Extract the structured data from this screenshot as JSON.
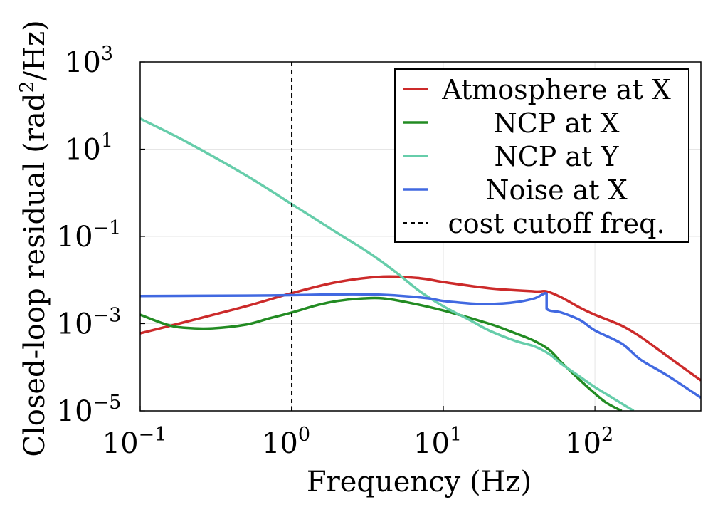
{
  "chart_data": {
    "type": "line",
    "title": "",
    "xlabel": "Frequency (Hz)",
    "ylabel": {
      "prefix": "Closed-loop residual (rad",
      "exponent": "2",
      "suffix": "/Hz)"
    },
    "x_scale": "log",
    "y_scale": "log",
    "xlim": [
      0.1,
      500
    ],
    "ylim": [
      1e-05,
      1000
    ],
    "grid": true,
    "legend_position": "top-right",
    "x_ticks": [
      {
        "value": 0.1,
        "base": "10",
        "exp": "−1"
      },
      {
        "value": 1,
        "base": "10",
        "exp": "0"
      },
      {
        "value": 10,
        "base": "10",
        "exp": "1"
      },
      {
        "value": 100,
        "base": "10",
        "exp": "2"
      }
    ],
    "y_ticks": [
      {
        "value": 1e-05,
        "base": "10",
        "exp": "−5"
      },
      {
        "value": 0.001,
        "base": "10",
        "exp": "−3"
      },
      {
        "value": 0.1,
        "base": "10",
        "exp": "−1"
      },
      {
        "value": 10,
        "base": "10",
        "exp": "1"
      },
      {
        "value": 1000,
        "base": "10",
        "exp": "3"
      }
    ],
    "series": [
      {
        "name": "Atmosphere at X",
        "color": "#cc2a2a",
        "style": "solid",
        "x": [
          0.1,
          0.2,
          0.5,
          1,
          2,
          4,
          7,
          10,
          20,
          40,
          48,
          60,
          80,
          100,
          150,
          200,
          300,
          500
        ],
        "y": [
          0.0006,
          0.0011,
          0.0025,
          0.005,
          0.009,
          0.012,
          0.011,
          0.009,
          0.0065,
          0.0055,
          0.0055,
          0.004,
          0.0023,
          0.0016,
          0.0009,
          0.0005,
          0.00018,
          5e-05
        ]
      },
      {
        "name": "NCP at X",
        "color": "#228b22",
        "style": "solid",
        "x": [
          0.1,
          0.15,
          0.2,
          0.3,
          0.5,
          0.7,
          1,
          1.5,
          2,
          3,
          4,
          6,
          10,
          20,
          30,
          40,
          50,
          60,
          80,
          100,
          120,
          150
        ],
        "y": [
          0.0016,
          0.00095,
          0.0008,
          0.00078,
          0.00095,
          0.0013,
          0.0018,
          0.0027,
          0.0033,
          0.0038,
          0.0038,
          0.003,
          0.002,
          0.001,
          0.0006,
          0.0004,
          0.00025,
          0.00013,
          5e-05,
          2.5e-05,
          1.5e-05,
          1e-05
        ]
      },
      {
        "name": "NCP at Y",
        "color": "#66cdaa",
        "style": "solid",
        "x": [
          0.1,
          0.2,
          0.5,
          1,
          2,
          3,
          4,
          5,
          7,
          10,
          15,
          20,
          30,
          40,
          50,
          60,
          80,
          100,
          130,
          180
        ],
        "y": [
          50,
          15,
          2.5,
          0.55,
          0.12,
          0.05,
          0.025,
          0.014,
          0.0055,
          0.0025,
          0.0012,
          0.0007,
          0.0004,
          0.0003,
          0.0002,
          0.00012,
          6e-05,
          3.5e-05,
          2e-05,
          1e-05
        ]
      },
      {
        "name": "Noise at X",
        "color": "#4169e1",
        "style": "solid",
        "x": [
          0.1,
          0.5,
          1,
          2,
          3,
          5,
          8,
          10,
          15,
          20,
          30,
          40,
          48,
          48.01,
          60,
          80,
          100,
          150,
          200,
          300,
          500
        ],
        "y": [
          0.0043,
          0.0044,
          0.0045,
          0.0047,
          0.0047,
          0.0044,
          0.0038,
          0.0033,
          0.0029,
          0.0028,
          0.0031,
          0.0038,
          0.0049,
          0.0022,
          0.0018,
          0.0012,
          0.0007,
          0.00035,
          0.00015,
          6.5e-05,
          2e-05
        ]
      },
      {
        "name": "cost cutoff freq.",
        "color": "#000000",
        "style": "dashed",
        "x": [
          1,
          1
        ],
        "y": [
          1e-05,
          1000
        ]
      }
    ]
  }
}
